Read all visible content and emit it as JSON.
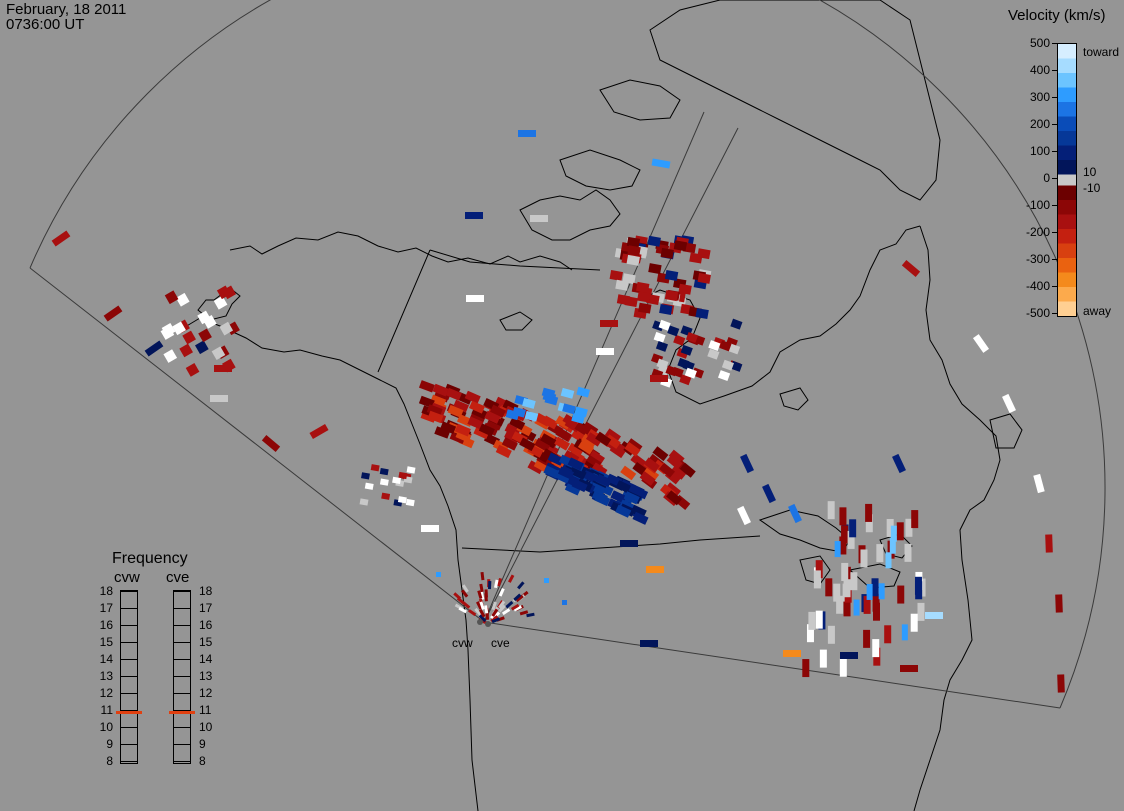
{
  "header": {
    "date": "February, 18 2011",
    "time": "0736:00 UT"
  },
  "velocity_scale": {
    "title": "Velocity (km/s)",
    "tick_labels": [
      "500",
      "400",
      "300",
      "200",
      "100",
      "0",
      "-100",
      "-200",
      "-300",
      "-400",
      "-500"
    ],
    "inner_labels": [
      "10",
      "-10"
    ],
    "toward_label": "toward",
    "away_label": "away",
    "colors_toward": [
      "#d6eeff",
      "#a6dcff",
      "#6cc4ff",
      "#2e9cff",
      "#1c74e4",
      "#0a4cb8",
      "#063898",
      "#041f78",
      "#02155a"
    ],
    "colors_away": [
      "#6c0000",
      "#8c0606",
      "#a81010",
      "#c42010",
      "#d84010",
      "#ea6210",
      "#f48a1c",
      "#fcaa4c",
      "#ffcf92"
    ],
    "ground_scatter_color": "#c8c8c8"
  },
  "frequency": {
    "title": "Frequency",
    "radars": [
      "cvw",
      "cve"
    ],
    "levels": [
      "18",
      "17",
      "16",
      "15",
      "14",
      "13",
      "12",
      "11",
      "10",
      "9",
      "8"
    ],
    "values_mhz": [
      10.9,
      10.9
    ],
    "marker_color": "#e04010"
  },
  "map": {
    "radar_labels": [
      "cvw",
      "cve"
    ]
  }
}
